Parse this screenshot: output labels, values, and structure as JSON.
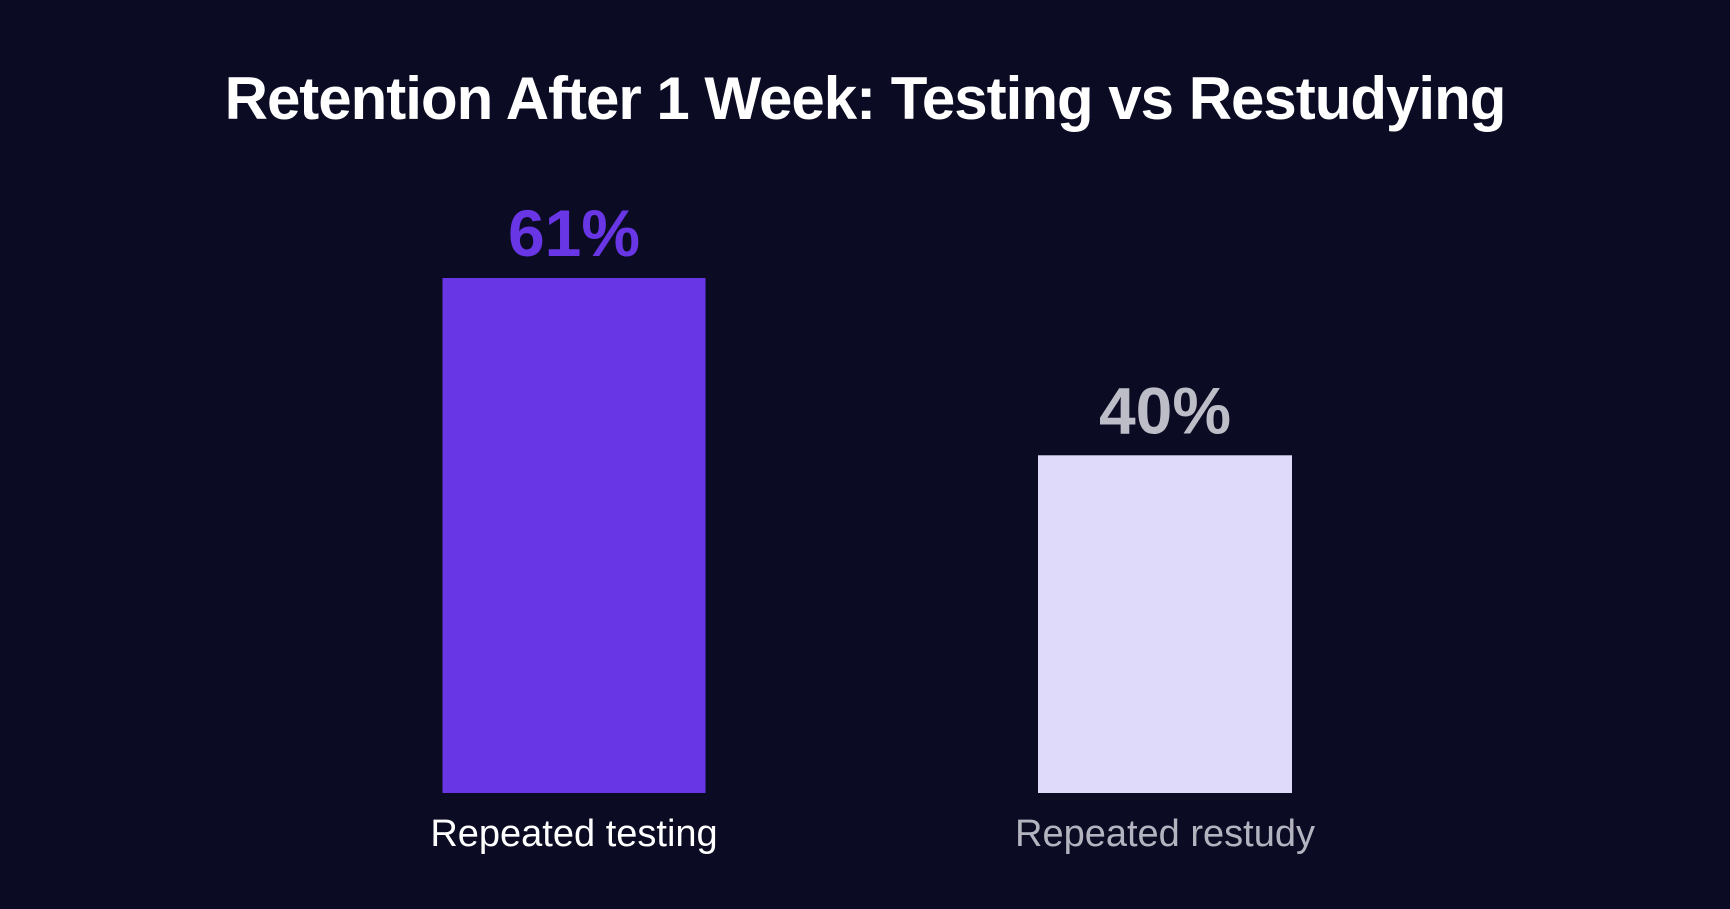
{
  "chart_data": {
    "type": "bar",
    "title": "Retention After 1 Week: Testing vs Restudying",
    "xlabel": "",
    "ylabel": "",
    "ylim": [
      0,
      61
    ],
    "grid": false,
    "categories": [
      "Repeated testing",
      "Repeated restudy"
    ],
    "values": [
      61,
      40
    ],
    "value_labels": [
      "61%",
      "40%"
    ],
    "colors": {
      "background": "#0b0c24",
      "bars": [
        "#6936e6",
        "#e0dafa"
      ],
      "value_labels": [
        "#6936e6",
        "#bdbdc8"
      ],
      "category_labels": [
        "#ffffff",
        "#b4b4c0"
      ]
    }
  }
}
